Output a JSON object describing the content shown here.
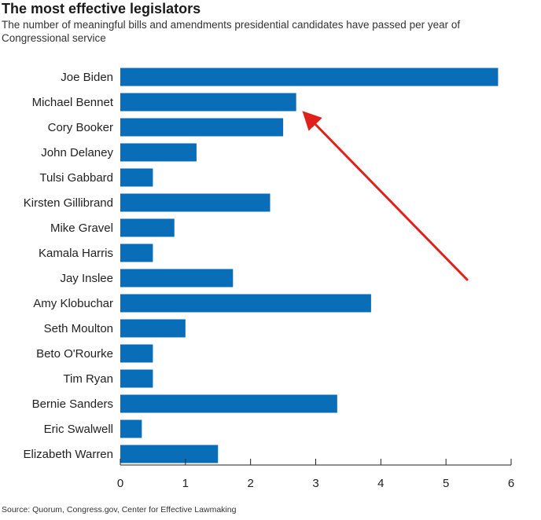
{
  "chart_data": {
    "type": "bar",
    "orientation": "horizontal",
    "title": "The most effective legislators",
    "subtitle": "The number of meaningful bills and amendments presidential candidates have passed per year of Congressional service",
    "source": "Source: Quorum, Congress.gov, Center for Effective Lawmaking",
    "categories": [
      "Joe Biden",
      "Michael Bennet",
      "Cory Booker",
      "John Delaney",
      "Tulsi Gabbard",
      "Kirsten Gillibrand",
      "Mike Gravel",
      "Kamala Harris",
      "Jay Inslee",
      "Amy Klobuchar",
      "Seth Moulton",
      "Beto O'Rourke",
      "Tim Ryan",
      "Bernie Sanders",
      "Eric Swalwell",
      "Elizabeth Warren"
    ],
    "values": [
      5.8,
      2.7,
      2.5,
      1.17,
      0.5,
      2.3,
      0.83,
      0.5,
      1.73,
      3.85,
      1.0,
      0.5,
      0.5,
      3.33,
      0.33,
      1.5
    ],
    "xlim": [
      0,
      6
    ],
    "xticks": [
      "0",
      "1",
      "2",
      "3",
      "4",
      "5",
      "6"
    ],
    "xlabel": "",
    "ylabel": "",
    "bar_color": "#0a6db8",
    "annotation": {
      "type": "arrow",
      "color": "#e0201b",
      "points_to": "Michael Bennet"
    }
  }
}
